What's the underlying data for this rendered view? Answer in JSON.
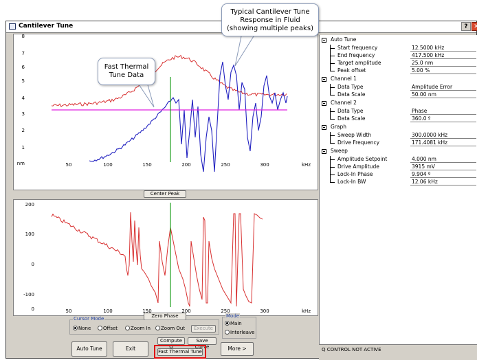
{
  "window": {
    "title": "Cantilever Tune"
  },
  "top_chart": {
    "y_ticks": [
      "8",
      "7",
      "6",
      "5",
      "4",
      "3",
      "2",
      "1",
      "nm"
    ],
    "x_ticks": [
      "50",
      "100",
      "150",
      "200",
      "250",
      "300"
    ],
    "x_unit": "kHz",
    "colors": {
      "amplitude": "#2020c0",
      "thermal": "#d83030",
      "setpoint": "#e020e0",
      "center": "#20a020"
    }
  },
  "bottom_chart": {
    "y_ticks": [
      "200",
      "100",
      "0",
      "-100",
      "0"
    ],
    "x_ticks": [
      "50",
      "100",
      "150",
      "200",
      "250",
      "300"
    ],
    "x_unit": "kHz",
    "colors": {
      "phase": "#d83030",
      "center": "#20a020"
    }
  },
  "buttons": {
    "center_peak": "Center Peak",
    "zero_phase": "Zero Phase",
    "auto_tune": "Auto Tune",
    "exit": "Exit",
    "compute_q": "Compute Q",
    "save_curve": "Save Curve",
    "fast_thermal_tune": "Fast Thermal Tune",
    "more": "More >",
    "execute": "Execute"
  },
  "cursor_mode": {
    "label": "Cursor Mode",
    "options": [
      "None",
      "Offset",
      "Zoom In",
      "Zoom Out"
    ],
    "selected": "None"
  },
  "mode": {
    "label": "Mode",
    "options": [
      "Main",
      "Interleave"
    ],
    "selected": "Main"
  },
  "properties": {
    "auto_tune": {
      "label": "Auto Tune",
      "start_frequency": {
        "label": "Start frequency",
        "value": "12.5000 kHz"
      },
      "end_frequency": {
        "label": "End frequency",
        "value": "417.500 kHz"
      },
      "target_amplitude": {
        "label": "Target amplitude",
        "value": "25.0 nm"
      },
      "peak_offset": {
        "label": "Peak offset",
        "value": "5.00 %"
      }
    },
    "channel1": {
      "label": "Channel 1",
      "data_type": {
        "label": "Data Type",
        "value": "Amplitude Error"
      },
      "data_scale": {
        "label": "Data Scale",
        "value": "50.00 nm"
      }
    },
    "channel2": {
      "label": "Channel 2",
      "data_type": {
        "label": "Data Type",
        "value": "Phase"
      },
      "data_scale": {
        "label": "Data Scale",
        "value": "360.0 º"
      }
    },
    "graph": {
      "label": "Graph",
      "sweep_width": {
        "label": "Sweep Width",
        "value": "300.0000 kHz"
      },
      "drive_frequency": {
        "label": "Drive Frequency",
        "value": "171.4081 kHz"
      }
    },
    "sweep": {
      "label": "Sweep",
      "amplitude_setpoint": {
        "label": "Amplitude Setpoint",
        "value": "4.000 nm"
      },
      "drive_amplitude": {
        "label": "Drive Amplitude",
        "value": "3915 mV"
      },
      "lockin_phase": {
        "label": "Lock-In Phase",
        "value": "9.904 º"
      },
      "lockin_bw": {
        "label": "Lock-In BW",
        "value": "12.06 kHz"
      }
    }
  },
  "status": "Q CONTROL NOT ACTIVE",
  "annotations": {
    "fast_thermal": [
      "Fast Thermal",
      "Tune Data"
    ],
    "typical": [
      "Typical Cantilever Tune",
      "Response in Fluid",
      "(showing multiple peaks)"
    ]
  }
}
